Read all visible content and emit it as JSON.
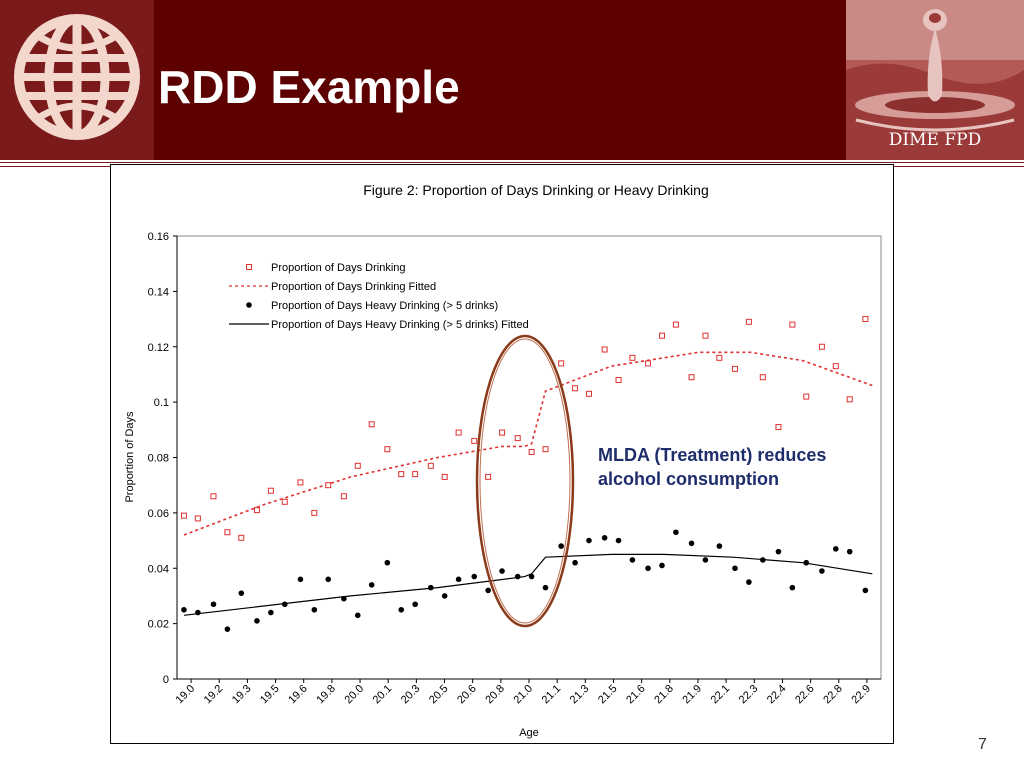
{
  "slide": {
    "title": "RDD Example",
    "brand": "DIME FPD",
    "page_number": "7",
    "callout": "MLDA (Treatment) reduces alcohol consumption",
    "logo_icon": "globe-icon",
    "brand_image_icon": "water-drop-icon",
    "colors": {
      "header": "#5c0000",
      "logo_bg": "#7a1a1a",
      "callout_text": "#1f2d6b",
      "highlight_ellipse": "#8b3a1a"
    }
  },
  "chart_data": {
    "type": "scatter",
    "title": "Figure 2: Proportion of Days Drinking or Heavy Drinking",
    "xlabel": "Age",
    "ylabel": "Proportion of Days",
    "ylim": [
      0,
      0.16
    ],
    "yticks": [
      "0",
      "0.02",
      "0.04",
      "0.06",
      "0.08",
      "0.1",
      "0.12",
      "0.14",
      "0.16"
    ],
    "xticks": [
      "19.0",
      "19.2",
      "19.3",
      "19.5",
      "19.6",
      "19.8",
      "20.0",
      "20.1",
      "20.3",
      "20.5",
      "20.6",
      "20.8",
      "21.0",
      "21.1",
      "21.3",
      "21.5",
      "21.6",
      "21.8",
      "21.9",
      "22.1",
      "22.3",
      "22.4",
      "22.6",
      "22.8",
      "22.9"
    ],
    "grid": false,
    "legend_position": "top-left",
    "series": [
      {
        "name": "Proportion of Days Drinking",
        "style": "open-square",
        "color": "#e03030",
        "x": [
          19.04,
          19.12,
          19.21,
          19.29,
          19.37,
          19.46,
          19.54,
          19.62,
          19.71,
          19.79,
          19.87,
          19.96,
          20.04,
          20.12,
          20.21,
          20.29,
          20.37,
          20.46,
          20.54,
          20.62,
          20.71,
          20.79,
          20.87,
          20.96,
          21.04,
          21.12,
          21.21,
          21.29,
          21.37,
          21.46,
          21.54,
          21.62,
          21.71,
          21.79,
          21.87,
          21.96,
          22.04,
          22.12,
          22.21,
          22.29,
          22.37,
          22.46,
          22.54,
          22.62,
          22.71,
          22.79,
          22.87,
          22.96
        ],
        "y": [
          0.059,
          0.058,
          0.066,
          0.053,
          0.051,
          0.061,
          0.068,
          0.064,
          0.071,
          0.06,
          0.07,
          0.066,
          0.077,
          0.092,
          0.083,
          0.074,
          0.074,
          0.077,
          0.073,
          0.089,
          0.086,
          0.073,
          0.089,
          0.087,
          0.082,
          0.083,
          0.114,
          0.105,
          0.103,
          0.119,
          0.108,
          0.116,
          0.114,
          0.124,
          0.128,
          0.109,
          0.124,
          0.116,
          0.112,
          0.129,
          0.109,
          0.091,
          0.128,
          0.102,
          0.12,
          0.113,
          0.101,
          0.13
        ]
      },
      {
        "name": "Proportion of Days Drinking Fitted",
        "style": "dotted-line",
        "color": "#e03030",
        "x": [
          19.04,
          19.5,
          20.0,
          20.5,
          20.87,
          21.0,
          21.04,
          21.12,
          21.5,
          22.0,
          22.3,
          22.6,
          23.0
        ],
        "y": [
          0.052,
          0.063,
          0.073,
          0.08,
          0.084,
          0.084,
          0.085,
          0.104,
          0.113,
          0.118,
          0.118,
          0.115,
          0.106
        ]
      },
      {
        "name": "Proportion of Days Heavy Drinking (> 5 drinks)",
        "style": "filled-circle",
        "color": "#000000",
        "x": [
          19.04,
          19.12,
          19.21,
          19.29,
          19.37,
          19.46,
          19.54,
          19.62,
          19.71,
          19.79,
          19.87,
          19.96,
          20.04,
          20.12,
          20.21,
          20.29,
          20.37,
          20.46,
          20.54,
          20.62,
          20.71,
          20.79,
          20.87,
          20.96,
          21.04,
          21.12,
          21.21,
          21.29,
          21.37,
          21.46,
          21.54,
          21.62,
          21.71,
          21.79,
          21.87,
          21.96,
          22.04,
          22.12,
          22.21,
          22.29,
          22.37,
          22.46,
          22.54,
          22.62,
          22.71,
          22.79,
          22.87,
          22.96
        ],
        "y": [
          0.025,
          0.024,
          0.027,
          0.018,
          0.031,
          0.021,
          0.024,
          0.027,
          0.036,
          0.025,
          0.036,
          0.029,
          0.023,
          0.034,
          0.042,
          0.025,
          0.027,
          0.033,
          0.03,
          0.036,
          0.037,
          0.032,
          0.039,
          0.037,
          0.037,
          0.033,
          0.048,
          0.042,
          0.05,
          0.051,
          0.05,
          0.043,
          0.04,
          0.041,
          0.053,
          0.049,
          0.043,
          0.048,
          0.04,
          0.035,
          0.043,
          0.046,
          0.033,
          0.042,
          0.039,
          0.047,
          0.046,
          0.032
        ]
      },
      {
        "name": "Proportion of Days Heavy Drinking (> 5 drinks) Fitted",
        "style": "solid-line",
        "color": "#000000",
        "x": [
          19.04,
          20.0,
          20.5,
          21.0,
          21.04,
          21.12,
          21.5,
          21.8,
          22.2,
          22.6,
          23.0
        ],
        "y": [
          0.023,
          0.03,
          0.033,
          0.037,
          0.038,
          0.044,
          0.045,
          0.045,
          0.044,
          0.042,
          0.038
        ]
      }
    ]
  }
}
